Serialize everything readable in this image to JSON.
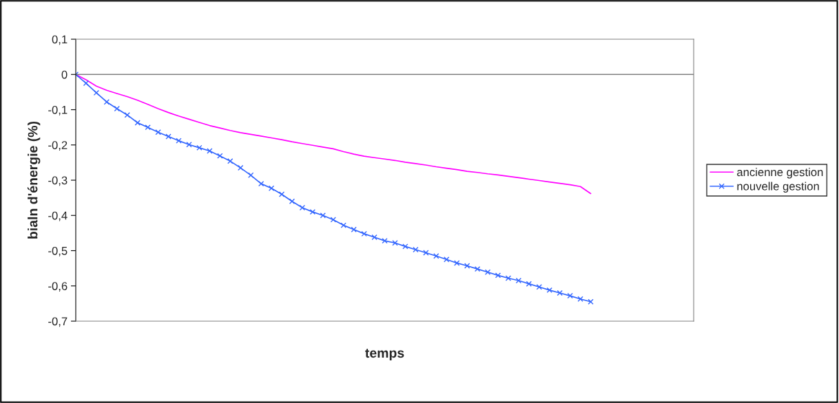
{
  "chart_data": {
    "type": "line",
    "xlabel": "temps",
    "ylabel": "bialn d'énergie (%)",
    "categories": [
      null,
      null,
      null,
      null,
      null,
      null,
      null,
      null,
      null,
      null,
      null,
      null,
      null,
      null,
      null,
      null,
      null,
      null,
      null,
      null,
      null,
      null,
      null,
      null,
      null,
      null,
      null,
      null,
      null,
      null,
      null,
      null,
      null,
      null,
      null,
      null,
      null,
      null,
      null,
      null,
      null,
      null,
      null,
      null,
      null,
      null,
      null,
      null,
      null,
      null,
      null,
      null,
      null,
      null,
      null,
      null,
      null,
      null,
      null,
      null,
      null
    ],
    "series": [
      {
        "name": "ancienne gestion",
        "color": "#ff00ff",
        "marker": "none",
        "values": [
          0,
          -0.015,
          -0.033,
          -0.045,
          -0.054,
          -0.063,
          -0.073,
          -0.085,
          -0.097,
          -0.108,
          -0.118,
          -0.127,
          -0.136,
          -0.145,
          -0.152,
          -0.159,
          -0.165,
          -0.17,
          -0.175,
          -0.18,
          -0.185,
          -0.191,
          -0.196,
          -0.201,
          -0.206,
          -0.211,
          -0.219,
          -0.226,
          -0.232,
          -0.236,
          -0.24,
          -0.244,
          -0.249,
          -0.253,
          -0.257,
          -0.262,
          -0.266,
          -0.27,
          -0.275,
          -0.278,
          -0.282,
          -0.285,
          -0.289,
          -0.293,
          -0.297,
          -0.301,
          -0.305,
          -0.309,
          -0.313,
          -0.318,
          -0.338,
          null,
          null,
          null,
          null,
          null,
          null,
          null,
          null,
          null,
          null
        ]
      },
      {
        "name": "nouvelle gestion",
        "color": "#3366ff",
        "marker": "cross",
        "values": [
          0,
          -0.025,
          -0.052,
          -0.078,
          -0.097,
          -0.115,
          -0.137,
          -0.15,
          -0.164,
          -0.176,
          -0.188,
          -0.199,
          -0.208,
          -0.217,
          -0.231,
          -0.246,
          -0.265,
          -0.286,
          -0.31,
          -0.323,
          -0.34,
          -0.36,
          -0.378,
          -0.39,
          -0.4,
          -0.412,
          -0.428,
          -0.44,
          -0.452,
          -0.462,
          -0.472,
          -0.478,
          -0.488,
          -0.497,
          -0.506,
          -0.515,
          -0.525,
          -0.535,
          -0.543,
          -0.552,
          -0.561,
          -0.57,
          -0.578,
          -0.585,
          -0.594,
          -0.603,
          -0.612,
          -0.62,
          -0.628,
          -0.637,
          -0.645,
          null,
          null,
          null,
          null,
          null,
          null,
          null,
          null,
          null,
          null
        ]
      }
    ],
    "ylim": [
      -0.7,
      0.1
    ],
    "yticks": [
      {
        "value": 0.1,
        "label": "0,1"
      },
      0,
      {
        "value": -0.1,
        "label": "-0,1"
      },
      {
        "value": -0.2,
        "label": "-0,2"
      },
      {
        "value": -0.3,
        "label": "-0,3"
      },
      {
        "value": -0.4,
        "label": "-0,4"
      },
      {
        "value": -0.5,
        "label": "-0,5"
      },
      {
        "value": -0.6,
        "label": "-0,6"
      },
      {
        "value": -0.7,
        "label": "-0,7"
      }
    ],
    "ref_lines": [
      {
        "axis": "y",
        "value": 0,
        "color": "#808080"
      }
    ],
    "tick_labels": "y",
    "legend": "right",
    "grid": false
  }
}
